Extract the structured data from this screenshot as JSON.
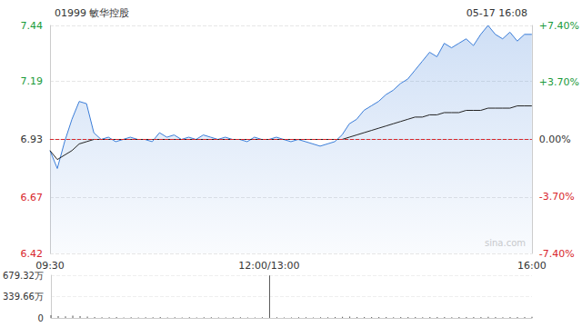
{
  "chart_data": [
    {
      "type": "line",
      "title": "01999 敏华控股",
      "subtitle": "05-17 16:08",
      "watermark": "sina.com",
      "categories": [
        "09:30",
        null,
        null,
        null,
        null,
        null,
        null,
        null,
        null,
        null,
        null,
        null,
        null,
        null,
        null,
        null,
        null,
        null,
        null,
        null,
        null,
        null,
        null,
        null,
        null,
        null,
        null,
        null,
        null,
        null,
        "12:00/13:00",
        null,
        null,
        null,
        null,
        null,
        null,
        null,
        null,
        null,
        null,
        null,
        null,
        null,
        null,
        null,
        null,
        null,
        null,
        null,
        null,
        null,
        null,
        null,
        null,
        null,
        null,
        null,
        null,
        null,
        null,
        null,
        null,
        null,
        null,
        null,
        "16:00"
      ],
      "series": [
        {
          "type": "area",
          "color": "#3b7dd8",
          "values": [
            6.88,
            6.8,
            6.92,
            7.02,
            7.1,
            7.09,
            6.96,
            6.93,
            6.94,
            6.92,
            6.93,
            6.94,
            6.93,
            6.93,
            6.92,
            6.96,
            6.94,
            6.95,
            6.93,
            6.94,
            6.93,
            6.95,
            6.94,
            6.93,
            6.94,
            6.93,
            6.93,
            6.92,
            6.94,
            6.93,
            6.93,
            6.94,
            6.93,
            6.92,
            6.93,
            6.92,
            6.91,
            6.9,
            6.91,
            6.92,
            6.95,
            7.0,
            7.02,
            7.06,
            7.08,
            7.1,
            7.13,
            7.15,
            7.18,
            7.2,
            7.24,
            7.28,
            7.32,
            7.3,
            7.36,
            7.34,
            7.36,
            7.38,
            7.35,
            7.4,
            7.44,
            7.4,
            7.38,
            7.41,
            7.37,
            7.4,
            7.4
          ]
        },
        {
          "type": "line",
          "color": "#222222",
          "values": [
            6.88,
            6.84,
            6.86,
            6.88,
            6.91,
            6.92,
            6.93,
            6.93,
            6.93,
            6.93,
            6.93,
            6.93,
            6.93,
            6.93,
            6.93,
            6.93,
            6.93,
            6.93,
            6.93,
            6.93,
            6.93,
            6.93,
            6.93,
            6.93,
            6.93,
            6.93,
            6.93,
            6.93,
            6.93,
            6.93,
            6.93,
            6.93,
            6.93,
            6.93,
            6.93,
            6.93,
            6.93,
            6.93,
            6.93,
            6.93,
            6.93,
            6.94,
            6.95,
            6.96,
            6.97,
            6.98,
            6.99,
            7.0,
            7.01,
            7.02,
            7.03,
            7.03,
            7.04,
            7.04,
            7.05,
            7.05,
            7.05,
            7.06,
            7.06,
            7.06,
            7.07,
            7.07,
            7.07,
            7.07,
            7.08,
            7.08,
            7.08
          ]
        }
      ],
      "reference": 6.93,
      "ylim": [
        6.42,
        7.44
      ],
      "yticks": [
        6.42,
        6.67,
        6.93,
        7.19,
        7.44
      ],
      "y2lim": [
        -7.4,
        7.4
      ],
      "y2ticks": [
        {
          "value": -7.4,
          "label": "-7.40%"
        },
        {
          "value": -3.7,
          "label": "-3.70%"
        },
        {
          "value": 0,
          "label": "0.00%"
        },
        {
          "value": 3.7,
          "label": "+3.70%"
        },
        {
          "value": 7.4,
          "label": "+7.40%"
        }
      ],
      "grid": true
    },
    {
      "type": "bar",
      "color": "#555555",
      "categories": [
        "09:30",
        null,
        null,
        null,
        null,
        null,
        null,
        null,
        null,
        null,
        null,
        null,
        null,
        null,
        null,
        null,
        null,
        null,
        null,
        null,
        null,
        null,
        null,
        null,
        null,
        null,
        null,
        null,
        null,
        null,
        "12:00/13:00",
        null,
        null,
        null,
        null,
        null,
        null,
        null,
        null,
        null,
        null,
        null,
        null,
        null,
        null,
        null,
        null,
        null,
        null,
        null,
        null,
        null,
        null,
        null,
        null,
        null,
        null,
        null,
        null,
        null,
        null,
        null,
        null,
        null,
        null,
        null,
        "16:00"
      ],
      "values": [
        45,
        30,
        25,
        35,
        30,
        20,
        15,
        12,
        10,
        14,
        9,
        11,
        8,
        12,
        10,
        13,
        9,
        10,
        8,
        11,
        9,
        10,
        12,
        8,
        9,
        11,
        10,
        8,
        9,
        12,
        675,
        10,
        9,
        8,
        11,
        10,
        9,
        12,
        10,
        14,
        18,
        20,
        16,
        15,
        14,
        13,
        16,
        12,
        14,
        15,
        13,
        12,
        14,
        16,
        13,
        12,
        15,
        14,
        13,
        16,
        18,
        14,
        12,
        13,
        15,
        14,
        18
      ],
      "ylim": [
        0,
        679.32
      ],
      "yticks": [
        0,
        {
          "value": 339.66,
          "label": "339.66万"
        },
        {
          "value": 679.32,
          "label": "679.32万"
        }
      ],
      "tick_labels": "y"
    }
  ]
}
